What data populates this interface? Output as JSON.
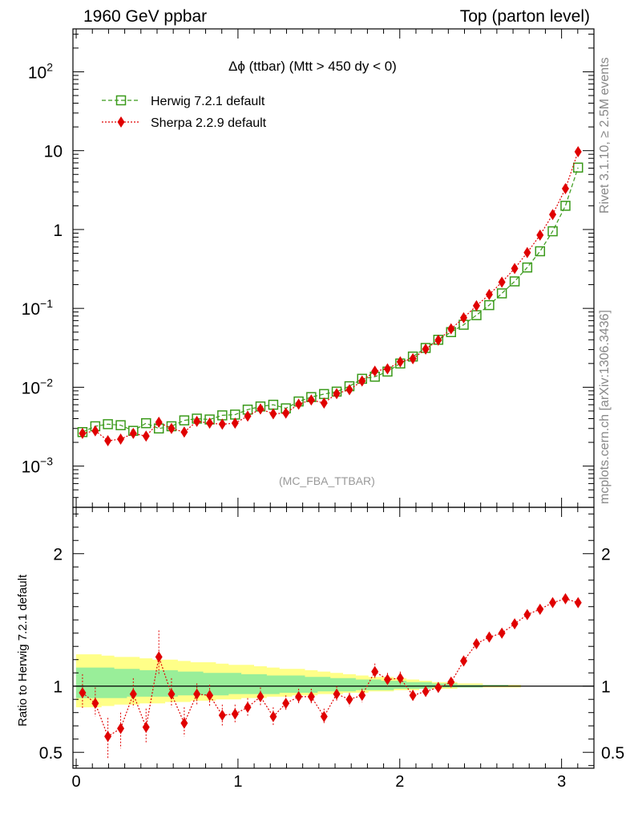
{
  "header": {
    "left": "1960 GeV ppbar",
    "right": "Top (parton level)"
  },
  "side_labels": {
    "rivet": "Rivet 3.1.10, ≥ 2.5M events",
    "mcplots": "mcplots.cern.ch [arXiv:1306.3436]"
  },
  "chart_data": [
    {
      "type": "line",
      "title": "Δϕ (ttbar) (Mtt > 450 dy < 0)",
      "watermark": "(MC_FBA_TTBAR)",
      "xlabel": "",
      "ylabel": "",
      "yscale": "log",
      "xlim": [
        -0.02,
        3.2
      ],
      "ylim": [
        0.0003,
        350
      ],
      "legend_position": "top-left",
      "y_tick_labels": [
        "10^-3",
        "10^-2",
        "10^-1",
        "1",
        "10",
        "10^2"
      ],
      "x": [
        0.039,
        0.118,
        0.196,
        0.275,
        0.353,
        0.432,
        0.511,
        0.589,
        0.668,
        0.746,
        0.825,
        0.903,
        0.982,
        1.06,
        1.139,
        1.218,
        1.296,
        1.375,
        1.453,
        1.532,
        1.61,
        1.689,
        1.767,
        1.846,
        1.924,
        2.003,
        2.081,
        2.16,
        2.238,
        2.317,
        2.395,
        2.474,
        2.553,
        2.631,
        2.71,
        2.788,
        2.867,
        2.945,
        3.024,
        3.102
      ],
      "series": [
        {
          "name": "Herwig 7.2.1 default",
          "color": "#3a9a1a",
          "marker": "open-square",
          "line": "dashed",
          "values": [
            0.0027,
            0.0032,
            0.0034,
            0.0033,
            0.0028,
            0.0035,
            0.003,
            0.0032,
            0.0038,
            0.004,
            0.0039,
            0.0044,
            0.0045,
            0.0052,
            0.0057,
            0.006,
            0.0054,
            0.0066,
            0.0075,
            0.0082,
            0.0088,
            0.0103,
            0.0128,
            0.0136,
            0.0158,
            0.02,
            0.0245,
            0.0315,
            0.04,
            0.05,
            0.062,
            0.082,
            0.11,
            0.155,
            0.22,
            0.33,
            0.53,
            0.95,
            2.0,
            6.1
          ]
        },
        {
          "name": "Sherpa 2.2.9 default",
          "color": "#e00000",
          "marker": "filled-diamond",
          "line": "dotted",
          "values": [
            0.0026,
            0.0028,
            0.0021,
            0.0022,
            0.0026,
            0.0024,
            0.0036,
            0.003,
            0.0027,
            0.0037,
            0.0035,
            0.0034,
            0.0035,
            0.0043,
            0.0053,
            0.0046,
            0.0047,
            0.0061,
            0.0069,
            0.0063,
            0.0083,
            0.0093,
            0.012,
            0.016,
            0.0171,
            0.021,
            0.023,
            0.0305,
            0.0395,
            0.055,
            0.076,
            0.108,
            0.15,
            0.215,
            0.32,
            0.51,
            0.85,
            1.55,
            3.3,
            9.7
          ]
        }
      ]
    },
    {
      "type": "line",
      "ylabel": "Ratio to Herwig 7.2.1 default",
      "xlabel": "",
      "ylim": [
        0.38,
        2.35
      ],
      "xlim": [
        -0.02,
        3.2
      ],
      "x_tick_labels": [
        "0",
        "1",
        "2",
        "3"
      ],
      "y_tick_labels": [
        "0.5",
        "1",
        "2"
      ],
      "reference_line": 1,
      "x": [
        0.039,
        0.118,
        0.196,
        0.275,
        0.353,
        0.432,
        0.511,
        0.589,
        0.668,
        0.746,
        0.825,
        0.903,
        0.982,
        1.06,
        1.139,
        1.218,
        1.296,
        1.375,
        1.453,
        1.532,
        1.61,
        1.689,
        1.767,
        1.846,
        1.924,
        2.003,
        2.081,
        2.16,
        2.238,
        2.317,
        2.395,
        2.474,
        2.553,
        2.631,
        2.71,
        2.788,
        2.867,
        2.945,
        3.024,
        3.102
      ],
      "bands": [
        {
          "name": "outer uncertainty band",
          "color": "#ffff88",
          "upper": [
            1.24,
            1.24,
            1.23,
            1.22,
            1.22,
            1.21,
            1.2,
            1.2,
            1.19,
            1.18,
            1.18,
            1.17,
            1.16,
            1.16,
            1.15,
            1.14,
            1.13,
            1.13,
            1.12,
            1.11,
            1.1,
            1.09,
            1.08,
            1.07,
            1.07,
            1.06,
            1.05,
            1.04,
            1.03,
            1.03,
            1.02,
            1.02,
            1.01,
            1.01,
            1.01,
            1.0,
            1.0,
            1.0,
            1.0,
            1.0
          ],
          "lower": [
            0.84,
            0.84,
            0.85,
            0.86,
            0.86,
            0.87,
            0.87,
            0.88,
            0.88,
            0.89,
            0.89,
            0.9,
            0.9,
            0.91,
            0.91,
            0.92,
            0.92,
            0.93,
            0.93,
            0.94,
            0.94,
            0.95,
            0.95,
            0.96,
            0.96,
            0.97,
            0.97,
            0.98,
            0.98,
            0.98,
            0.99,
            0.99,
            0.99,
            0.99,
            0.99,
            1.0,
            1.0,
            1.0,
            1.0,
            1.0
          ]
        },
        {
          "name": "inner uncertainty band",
          "color": "#99ee99",
          "upper": [
            1.14,
            1.14,
            1.14,
            1.13,
            1.13,
            1.12,
            1.12,
            1.12,
            1.11,
            1.11,
            1.1,
            1.1,
            1.1,
            1.09,
            1.09,
            1.08,
            1.08,
            1.08,
            1.07,
            1.07,
            1.06,
            1.06,
            1.05,
            1.05,
            1.04,
            1.04,
            1.03,
            1.03,
            1.02,
            1.02,
            1.01,
            1.01,
            1.01,
            1.01,
            1.0,
            1.0,
            1.0,
            1.0,
            1.0,
            1.0
          ],
          "lower": [
            0.91,
            0.91,
            0.91,
            0.91,
            0.92,
            0.92,
            0.92,
            0.92,
            0.93,
            0.93,
            0.93,
            0.93,
            0.94,
            0.94,
            0.94,
            0.94,
            0.95,
            0.95,
            0.95,
            0.96,
            0.96,
            0.96,
            0.97,
            0.97,
            0.97,
            0.98,
            0.98,
            0.98,
            0.99,
            0.99,
            0.99,
            0.99,
            1.0,
            1.0,
            1.0,
            1.0,
            1.0,
            1.0,
            1.0,
            1.0
          ]
        }
      ],
      "series": [
        {
          "name": "Sherpa 2.2.9 default",
          "color": "#e00000",
          "marker": "filled-diamond",
          "line": "dotted",
          "values": [
            0.95,
            0.87,
            0.62,
            0.68,
            0.94,
            0.69,
            1.22,
            0.94,
            0.72,
            0.94,
            0.93,
            0.78,
            0.79,
            0.84,
            0.92,
            0.77,
            0.87,
            0.92,
            0.92,
            0.77,
            0.94,
            0.9,
            0.93,
            1.11,
            1.05,
            1.06,
            0.93,
            0.96,
            0.99,
            1.03,
            1.19,
            1.32,
            1.37,
            1.4,
            1.47,
            1.54,
            1.58,
            1.63,
            1.66,
            1.63
          ],
          "err_low": [
            0.12,
            0.1,
            0.17,
            0.15,
            0.1,
            0.12,
            0.14,
            0.1,
            0.1,
            0.08,
            0.08,
            0.08,
            0.07,
            0.07,
            0.07,
            0.07,
            0.06,
            0.06,
            0.06,
            0.06,
            0.06,
            0.05,
            0.05,
            0.06,
            0.05,
            0.05,
            0.04,
            0.04,
            0.03,
            0.03,
            0.03,
            0.03,
            0.02,
            0.02,
            0.02,
            0.02,
            0.02,
            0.02,
            0.02,
            0.02
          ],
          "err_high": [
            0.14,
            0.12,
            0.14,
            0.12,
            0.12,
            0.14,
            0.2,
            0.12,
            0.12,
            0.08,
            0.08,
            0.08,
            0.07,
            0.07,
            0.07,
            0.07,
            0.06,
            0.06,
            0.06,
            0.06,
            0.06,
            0.05,
            0.05,
            0.06,
            0.05,
            0.05,
            0.04,
            0.04,
            0.03,
            0.03,
            0.03,
            0.03,
            0.02,
            0.02,
            0.02,
            0.02,
            0.02,
            0.02,
            0.02,
            0.02
          ]
        }
      ]
    }
  ]
}
